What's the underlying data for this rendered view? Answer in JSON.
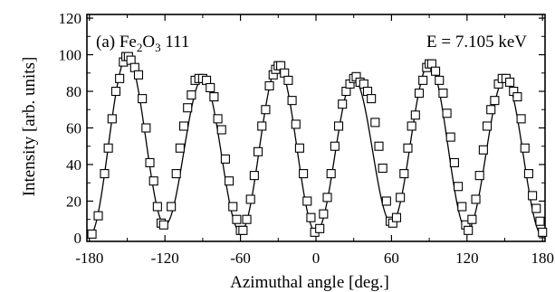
{
  "chart_data": {
    "type": "scatter",
    "xlabel": "Azimuthal angle [deg.]",
    "ylabel": "Intensity [arb. units]",
    "xlim": [
      -182,
      182
    ],
    "ylim": [
      -2,
      122
    ],
    "xticks": [
      -180,
      -120,
      -60,
      0,
      60,
      120,
      180
    ],
    "yticks": [
      0,
      20,
      40,
      60,
      80,
      100,
      120
    ],
    "annotation_left": {
      "prefix": "(a)  Fe",
      "sub1": "2",
      "mid": "O",
      "sub2": "3",
      "suffix": " 111"
    },
    "annotation_right": "E = 7.105 keV",
    "grid": false,
    "marker": "open-square",
    "peaks": [
      {
        "center": -150,
        "height": 99
      },
      {
        "center": -90,
        "height": 87
      },
      {
        "center": -30,
        "height": 94
      },
      {
        "center": 30,
        "height": 87
      },
      {
        "center": 90,
        "height": 95
      },
      {
        "center": 150,
        "height": 87
      }
    ],
    "valleys": [
      {
        "x": -180,
        "y": 1
      },
      {
        "x": -120,
        "y": 7
      },
      {
        "x": -60,
        "y": 3
      },
      {
        "x": 0,
        "y": 3
      },
      {
        "x": 60,
        "y": 8
      },
      {
        "x": 120,
        "y": 4
      },
      {
        "x": 180,
        "y": 1
      }
    ],
    "series": [
      {
        "values": [
          [
            -178,
            2
          ],
          [
            -173,
            12
          ],
          [
            -168,
            35
          ],
          [
            -165,
            49
          ],
          [
            -162,
            65
          ],
          [
            -159,
            80
          ],
          [
            -156,
            87
          ],
          [
            -153,
            96
          ],
          [
            -151,
            99
          ],
          [
            -149,
            99
          ],
          [
            -147,
            97
          ],
          [
            -144,
            93
          ],
          [
            -141,
            89
          ],
          [
            -138,
            76
          ],
          [
            -135,
            60
          ],
          [
            -132,
            41
          ],
          [
            -129,
            31
          ],
          [
            -126,
            17
          ],
          [
            -123,
            8
          ],
          [
            -121,
            7
          ],
          [
            -115,
            17
          ],
          [
            -111,
            35
          ],
          [
            -108,
            49
          ],
          [
            -105,
            61
          ],
          [
            -102,
            71
          ],
          [
            -99,
            78
          ],
          [
            -96,
            86
          ],
          [
            -93,
            87
          ],
          [
            -90,
            87
          ],
          [
            -87,
            86
          ],
          [
            -84,
            82
          ],
          [
            -81,
            77
          ],
          [
            -78,
            65
          ],
          [
            -75,
            59
          ],
          [
            -72,
            43
          ],
          [
            -69,
            31
          ],
          [
            -66,
            17
          ],
          [
            -63,
            10
          ],
          [
            -60,
            4
          ],
          [
            -58,
            4
          ],
          [
            -55,
            10
          ],
          [
            -52,
            21
          ],
          [
            -49,
            34
          ],
          [
            -46,
            47
          ],
          [
            -43,
            61
          ],
          [
            -40,
            70
          ],
          [
            -37,
            83
          ],
          [
            -34,
            89
          ],
          [
            -32,
            92
          ],
          [
            -30,
            94
          ],
          [
            -28,
            94
          ],
          [
            -25,
            90
          ],
          [
            -22,
            86
          ],
          [
            -19,
            75
          ],
          [
            -16,
            62
          ],
          [
            -13,
            49
          ],
          [
            -10,
            35
          ],
          [
            -7,
            20
          ],
          [
            -4,
            11
          ],
          [
            -1,
            3
          ],
          [
            3,
            5
          ],
          [
            6,
            13
          ],
          [
            9,
            22
          ],
          [
            12,
            35
          ],
          [
            15,
            50
          ],
          [
            18,
            61
          ],
          [
            21,
            73
          ],
          [
            24,
            80
          ],
          [
            27,
            84
          ],
          [
            30,
            87
          ],
          [
            32,
            88
          ],
          [
            35,
            85
          ],
          [
            38,
            84
          ],
          [
            41,
            80
          ],
          [
            44,
            76
          ],
          [
            47,
            63
          ],
          [
            50,
            50
          ],
          [
            53,
            38
          ],
          [
            56,
            20
          ],
          [
            59,
            9
          ],
          [
            61,
            8
          ],
          [
            64,
            11
          ],
          [
            67,
            22
          ],
          [
            70,
            35
          ],
          [
            73,
            49
          ],
          [
            76,
            61
          ],
          [
            79,
            67
          ],
          [
            82,
            79
          ],
          [
            85,
            86
          ],
          [
            88,
            93
          ],
          [
            90,
            95
          ],
          [
            92,
            95
          ],
          [
            95,
            91
          ],
          [
            98,
            86
          ],
          [
            101,
            79
          ],
          [
            104,
            68
          ],
          [
            107,
            55
          ],
          [
            110,
            41
          ],
          [
            113,
            28
          ],
          [
            116,
            17
          ],
          [
            119,
            7
          ],
          [
            121,
            4
          ],
          [
            124,
            10
          ],
          [
            127,
            21
          ],
          [
            130,
            34
          ],
          [
            133,
            48
          ],
          [
            136,
            61
          ],
          [
            139,
            70
          ],
          [
            142,
            75
          ],
          [
            145,
            84
          ],
          [
            148,
            87
          ],
          [
            151,
            87
          ],
          [
            154,
            85
          ],
          [
            157,
            80
          ],
          [
            160,
            77
          ],
          [
            163,
            65
          ],
          [
            166,
            49
          ],
          [
            169,
            35
          ],
          [
            172,
            23
          ],
          [
            175,
            16
          ],
          [
            178,
            9
          ],
          [
            180,
            3
          ]
        ]
      }
    ]
  }
}
